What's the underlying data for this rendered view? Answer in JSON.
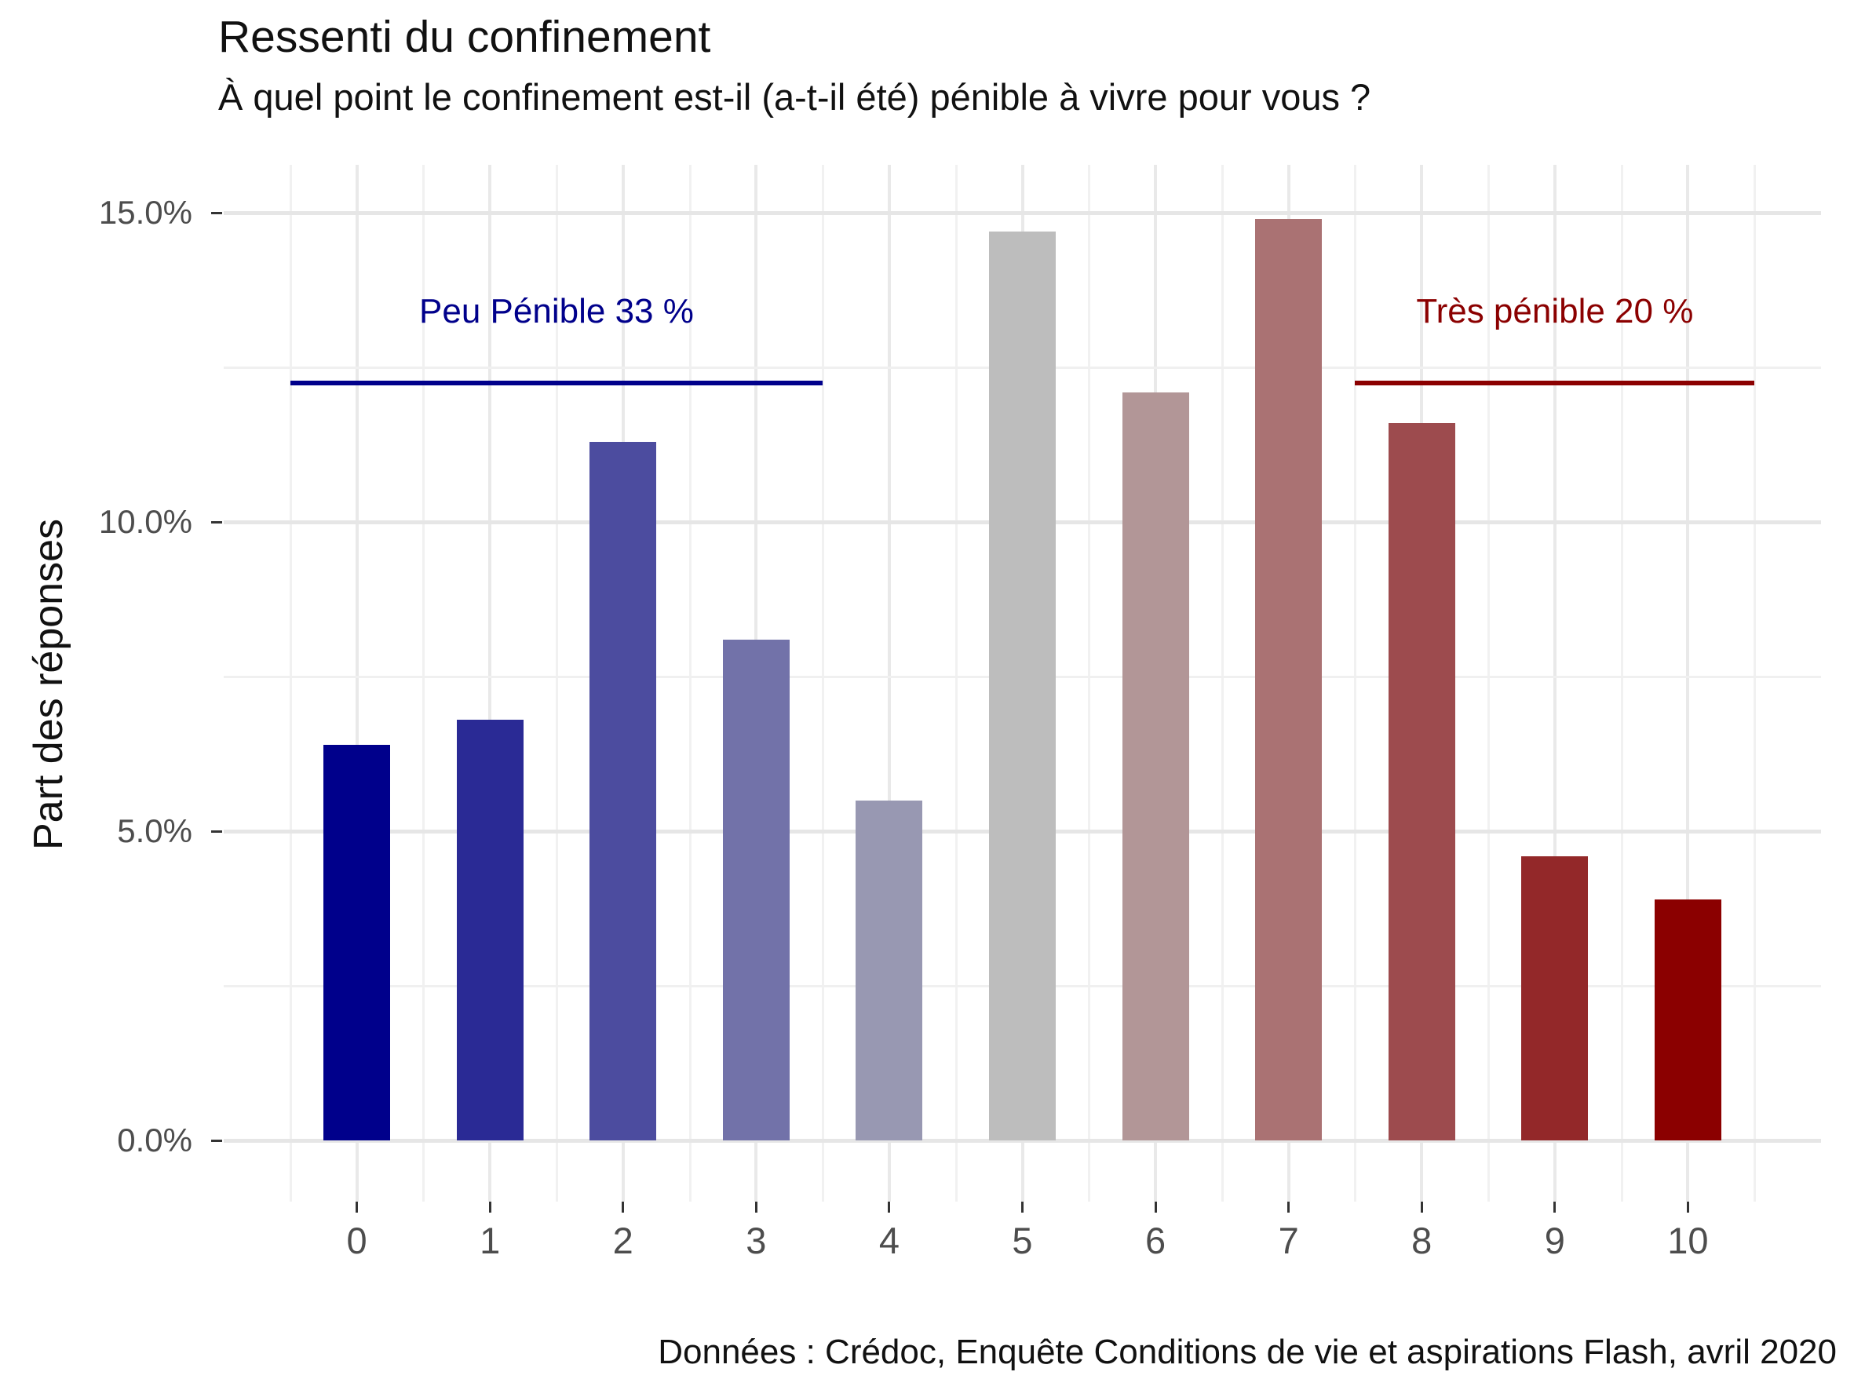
{
  "chart_data": {
    "type": "bar",
    "title": "Ressenti du confinement",
    "subtitle": "À quel point le confinement est-il (a-t-il été) pénible à vivre pour vous ?",
    "ylabel": "Part des réponses",
    "xlabel": "",
    "caption": "Données : Crédoc, Enquête Conditions de vie et aspirations Flash, avril 2020",
    "categories": [
      "0",
      "1",
      "2",
      "3",
      "4",
      "5",
      "6",
      "7",
      "8",
      "9",
      "10"
    ],
    "values": [
      6.4,
      6.8,
      11.3,
      8.1,
      5.5,
      14.7,
      12.1,
      14.9,
      11.6,
      4.6,
      3.9
    ],
    "bar_colors": [
      "#00008B",
      "#2A2A95",
      "#4C4C9F",
      "#7272A9",
      "#9898B2",
      "#BDBDBD",
      "#B29697",
      "#AA7273",
      "#9D4B4E",
      "#932829",
      "#8B0000"
    ],
    "ylim": [
      0,
      15.8
    ],
    "y_ticks": [
      {
        "value": 0,
        "label": "0.0%"
      },
      {
        "value": 5,
        "label": "5.0%"
      },
      {
        "value": 10,
        "label": "10.0%"
      },
      {
        "value": 15,
        "label": "15.0%"
      }
    ],
    "y_minor_gridlines": [
      2.5,
      7.5,
      12.5
    ],
    "grid": "on",
    "legend": "none",
    "axis_text_color": "#4D4D4D",
    "annotations": [
      {
        "label": "Peu Pénible 33 %",
        "color": "#00008B",
        "x_start": -0.5,
        "x_end": 3.5,
        "text_x": 1.5,
        "line_y_pct": 12.25,
        "text_y_pct": 13.4
      },
      {
        "label": "Très pénible 20 %",
        "color": "#8B0000",
        "x_start": 7.5,
        "x_end": 10.5,
        "text_x": 9.0,
        "line_y_pct": 12.25,
        "text_y_pct": 13.4
      }
    ]
  }
}
